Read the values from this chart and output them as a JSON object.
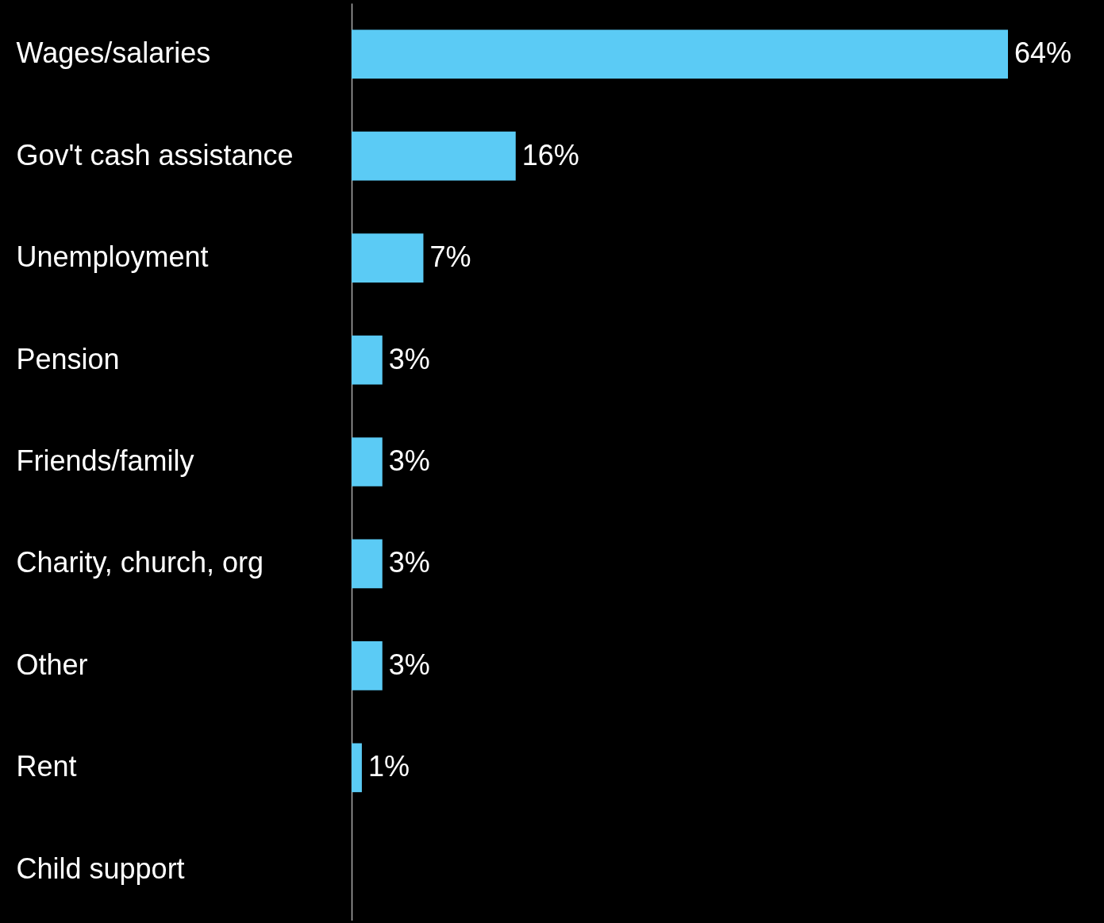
{
  "chart_data": {
    "type": "bar",
    "orientation": "horizontal",
    "categories": [
      "Wages/salaries",
      "Gov't cash assistance",
      "Unemployment",
      "Pension",
      "Friends/family",
      "Charity, church, org",
      "Other",
      "Rent",
      "Child support"
    ],
    "values": [
      64,
      16,
      7,
      3,
      3,
      3,
      3,
      1,
      null
    ],
    "value_labels": [
      "64%",
      "16%",
      "7%",
      "3%",
      "3%",
      "3%",
      "3%",
      "1%",
      null
    ],
    "color": "#5bcbf5"
  }
}
